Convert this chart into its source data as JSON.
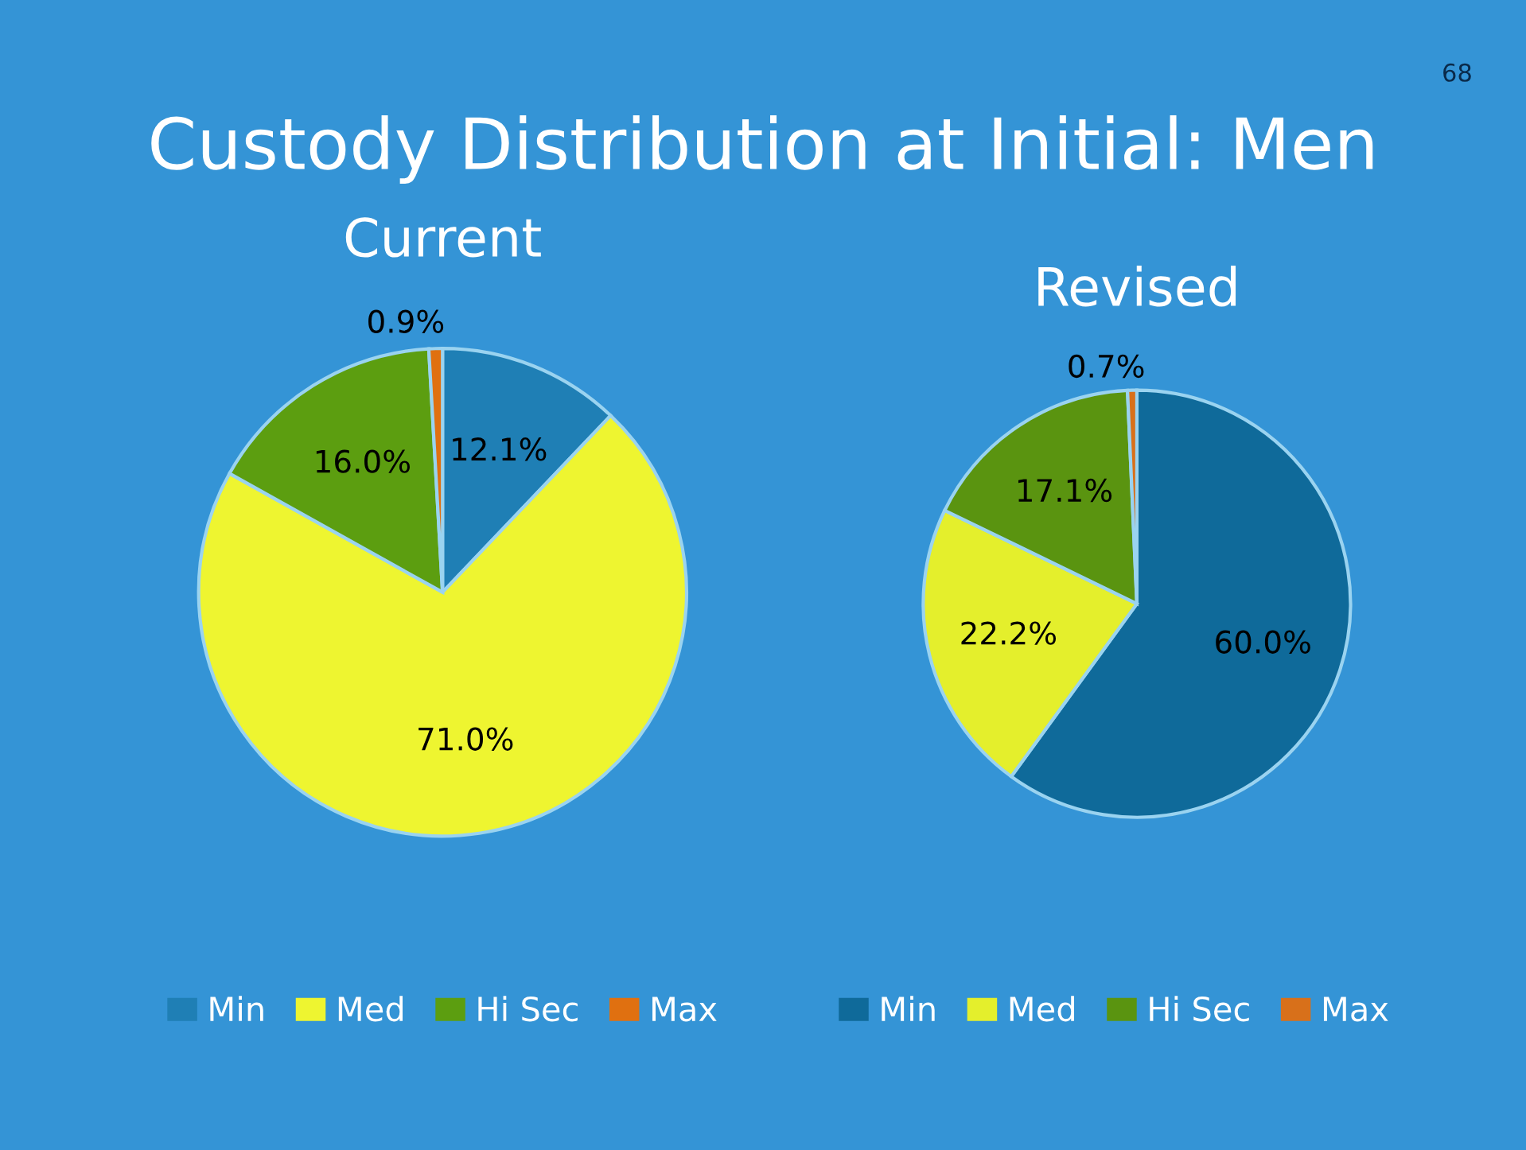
{
  "chart_data": [
    {
      "type": "pie",
      "title": "Custody Distribution at Initial: Men",
      "subtitle": "Current",
      "annotations": [
        "68"
      ],
      "categories": [
        "Min",
        "Med",
        "Hi Sec",
        "Max"
      ],
      "values": [
        12.1,
        71.0,
        16.0,
        0.9
      ],
      "value_labels": [
        "12.1%",
        "71.0%",
        "16.0%",
        "0.9%"
      ],
      "colors": [
        "#1f7fb5",
        "#eef530",
        "#5c9e10",
        "#e07010"
      ],
      "legend": "bottom"
    },
    {
      "type": "pie",
      "title": "Revised",
      "categories": [
        "Min",
        "Med",
        "Hi Sec",
        "Max"
      ],
      "values": [
        60.0,
        22.2,
        17.1,
        0.7
      ],
      "value_labels": [
        "60.0%",
        "22.2%",
        "17.1%",
        "0.7%"
      ],
      "colors": [
        "#0f6a9a",
        "#e4ef2c",
        "#5a9410",
        "#d8701a"
      ],
      "legend": "bottom"
    }
  ]
}
